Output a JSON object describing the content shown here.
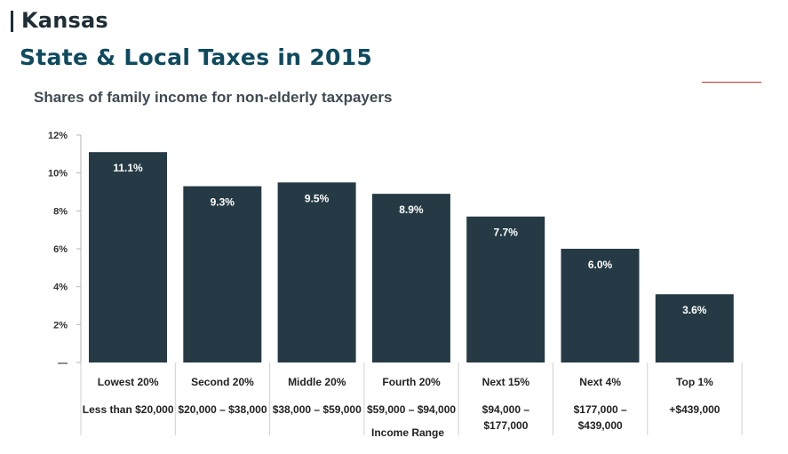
{
  "header": {
    "state": "Kansas",
    "title": "State & Local Taxes in 2015"
  },
  "colors": {
    "bar": "#253a44",
    "title": "#0f4a5e",
    "accent": "#c0392b"
  },
  "chart_data": {
    "type": "bar",
    "subtitle": "Shares of family income for non-elderly taxpayers",
    "xlabel": "Income Range",
    "ylabel": "",
    "ylim": [
      0,
      12
    ],
    "yticks": [
      "12%",
      "10%",
      "8%",
      "6%",
      "4%",
      "2%",
      "—"
    ],
    "grid": false,
    "categories": [
      "Lowest 20%",
      "Second 20%",
      "Middle 20%",
      "Fourth 20%",
      "Next 15%",
      "Next 4%",
      "Top 1%"
    ],
    "ranges": [
      [
        "Less than $20,000"
      ],
      [
        "$20,000 – $38,000"
      ],
      [
        "$38,000 – $59,000"
      ],
      [
        "$59,000 – $94,000"
      ],
      [
        "$94,000 –",
        "$177,000"
      ],
      [
        "$177,000 –",
        "$439,000"
      ],
      [
        "+$439,000"
      ]
    ],
    "values": [
      11.1,
      9.3,
      9.5,
      8.9,
      7.7,
      6.0,
      3.6
    ],
    "value_labels": [
      "11.1%",
      "9.3%",
      "9.5%",
      "8.9%",
      "7.7%",
      "6.0%",
      "3.6%"
    ]
  }
}
